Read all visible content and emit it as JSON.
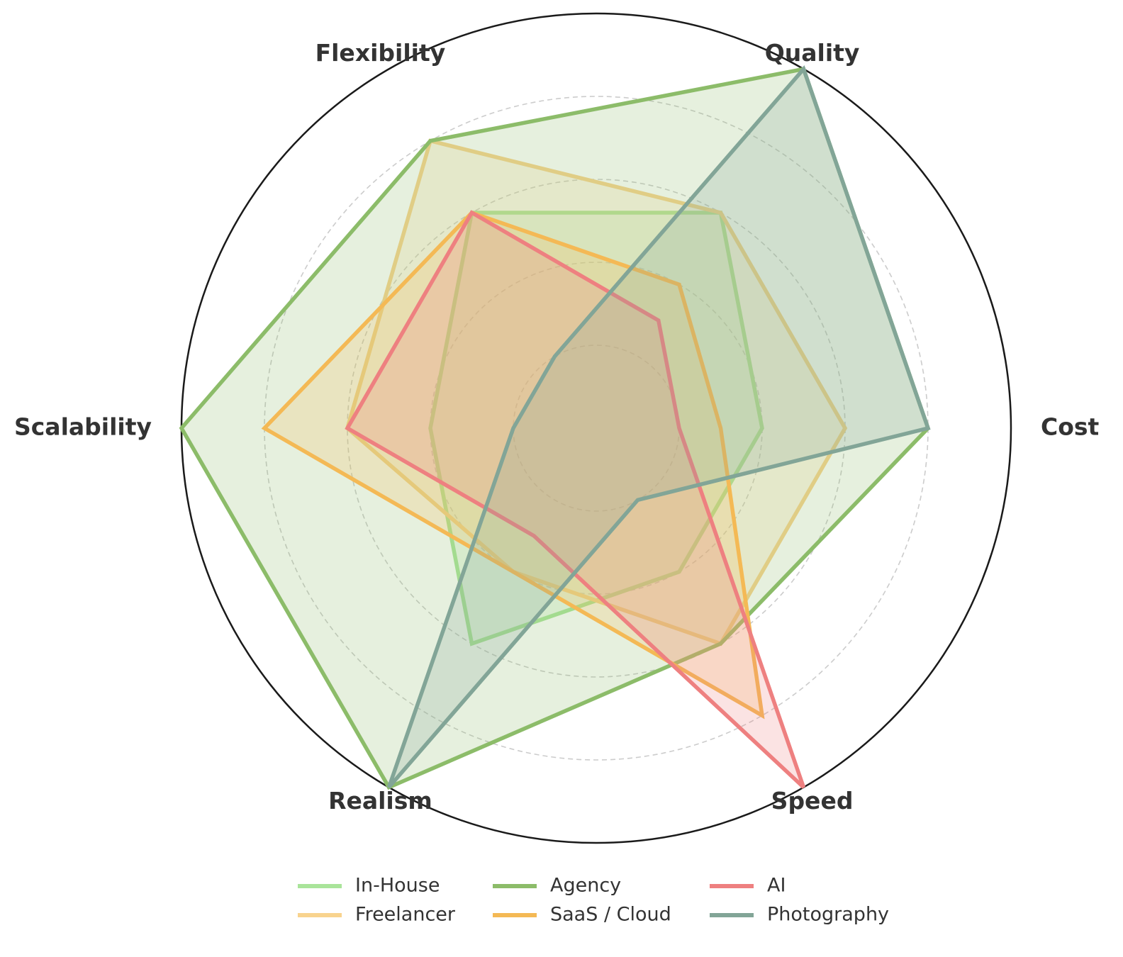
{
  "chart_data": {
    "type": "radar",
    "title": "",
    "axes": [
      "Cost",
      "Quality",
      "Flexibility",
      "Scalability",
      "Realism",
      "Speed"
    ],
    "rmax": 5,
    "rings": [
      1,
      2,
      3,
      4
    ],
    "grid": true,
    "legend_position": "bottom-center",
    "series": [
      {
        "name": "In-House",
        "color": "#a9e49a",
        "values": [
          2,
          3,
          3,
          2,
          3,
          2
        ]
      },
      {
        "name": "Freelancer",
        "color": "#f8d38e",
        "values": [
          3,
          3,
          4,
          3,
          2,
          3
        ]
      },
      {
        "name": "Agency",
        "color": "#8cbc69",
        "values": [
          4,
          5,
          4,
          5,
          5,
          3
        ]
      },
      {
        "name": "SaaS / Cloud",
        "color": "#f4b955",
        "values": [
          1.5,
          2,
          3,
          4,
          2,
          4
        ]
      },
      {
        "name": "AI",
        "color": "#ee8080",
        "values": [
          1,
          1.5,
          3,
          3,
          1.5,
          5
        ]
      },
      {
        "name": "Photography",
        "color": "#82a597",
        "values": [
          4,
          5,
          1,
          1,
          5,
          1
        ]
      }
    ]
  }
}
